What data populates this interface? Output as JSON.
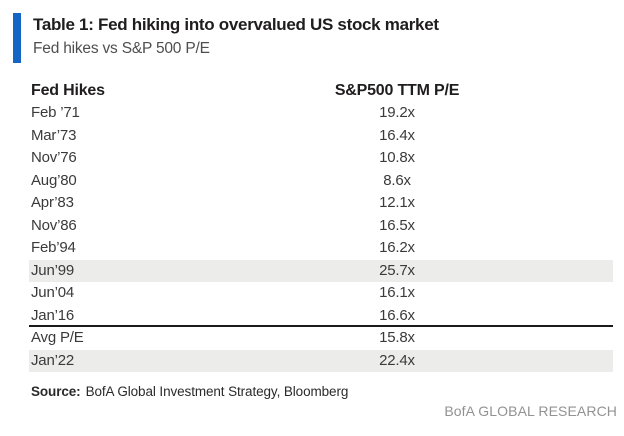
{
  "colors": {
    "accent": "#1565C4",
    "row_highlight": "#ECECEA",
    "divider": "#1C1B1A",
    "branding_gray": "#929292"
  },
  "header": {
    "title": "Table 1: Fed hiking into overvalued US stock market",
    "subtitle": "Fed hikes vs S&P 500 P/E"
  },
  "table": {
    "columns": [
      "Fed Hikes",
      "S&P500 TTM P/E"
    ],
    "rows": [
      {
        "label": "Feb ’71",
        "value": "19.2x",
        "highlight": false,
        "divider_below": false
      },
      {
        "label": "Mar’73",
        "value": "16.4x",
        "highlight": false,
        "divider_below": false
      },
      {
        "label": "Nov’76",
        "value": "10.8x",
        "highlight": false,
        "divider_below": false
      },
      {
        "label": "Aug’80",
        "value": "8.6x",
        "highlight": false,
        "divider_below": false
      },
      {
        "label": "Apr’83",
        "value": "12.1x",
        "highlight": false,
        "divider_below": false
      },
      {
        "label": "Nov’86",
        "value": "16.5x",
        "highlight": false,
        "divider_below": false
      },
      {
        "label": "Feb’94",
        "value": "16.2x",
        "highlight": false,
        "divider_below": false
      },
      {
        "label": "Jun’99",
        "value": "25.7x",
        "highlight": true,
        "divider_below": false
      },
      {
        "label": "Jun’04",
        "value": "16.1x",
        "highlight": false,
        "divider_below": false
      },
      {
        "label": "Jan’16",
        "value": "16.6x",
        "highlight": false,
        "divider_below": true
      },
      {
        "label": "Avg P/E",
        "value": "15.8x",
        "highlight": false,
        "divider_below": false
      },
      {
        "label": "Jan’22",
        "value": "22.4x",
        "highlight": true,
        "divider_below": false
      }
    ]
  },
  "footer": {
    "source_label": "Source:",
    "source_text": "BofA Global Investment Strategy, Bloomberg",
    "branding": "BofA GLOBAL RESEARCH"
  },
  "chart_data": {
    "type": "table",
    "title": "Table 1: Fed hiking into overvalued US stock market",
    "subtitle": "Fed hikes vs S&P 500 P/E",
    "columns": [
      "Fed Hikes",
      "S&P500 TTM P/E"
    ],
    "categories": [
      "Feb ’71",
      "Mar’73",
      "Nov’76",
      "Aug’80",
      "Apr’83",
      "Nov’86",
      "Feb’94",
      "Jun’99",
      "Jun’04",
      "Jan’16",
      "Avg P/E",
      "Jan’22"
    ],
    "values": [
      19.2,
      16.4,
      10.8,
      8.6,
      12.1,
      16.5,
      16.2,
      25.7,
      16.1,
      16.6,
      15.8,
      22.4
    ],
    "value_suffix": "x",
    "highlighted_rows": [
      "Jun’99",
      "Jan’22"
    ],
    "divider_after_row": "Jan’16",
    "source": "BofA Global Investment Strategy, Bloomberg",
    "branding": "BofA GLOBAL RESEARCH"
  }
}
